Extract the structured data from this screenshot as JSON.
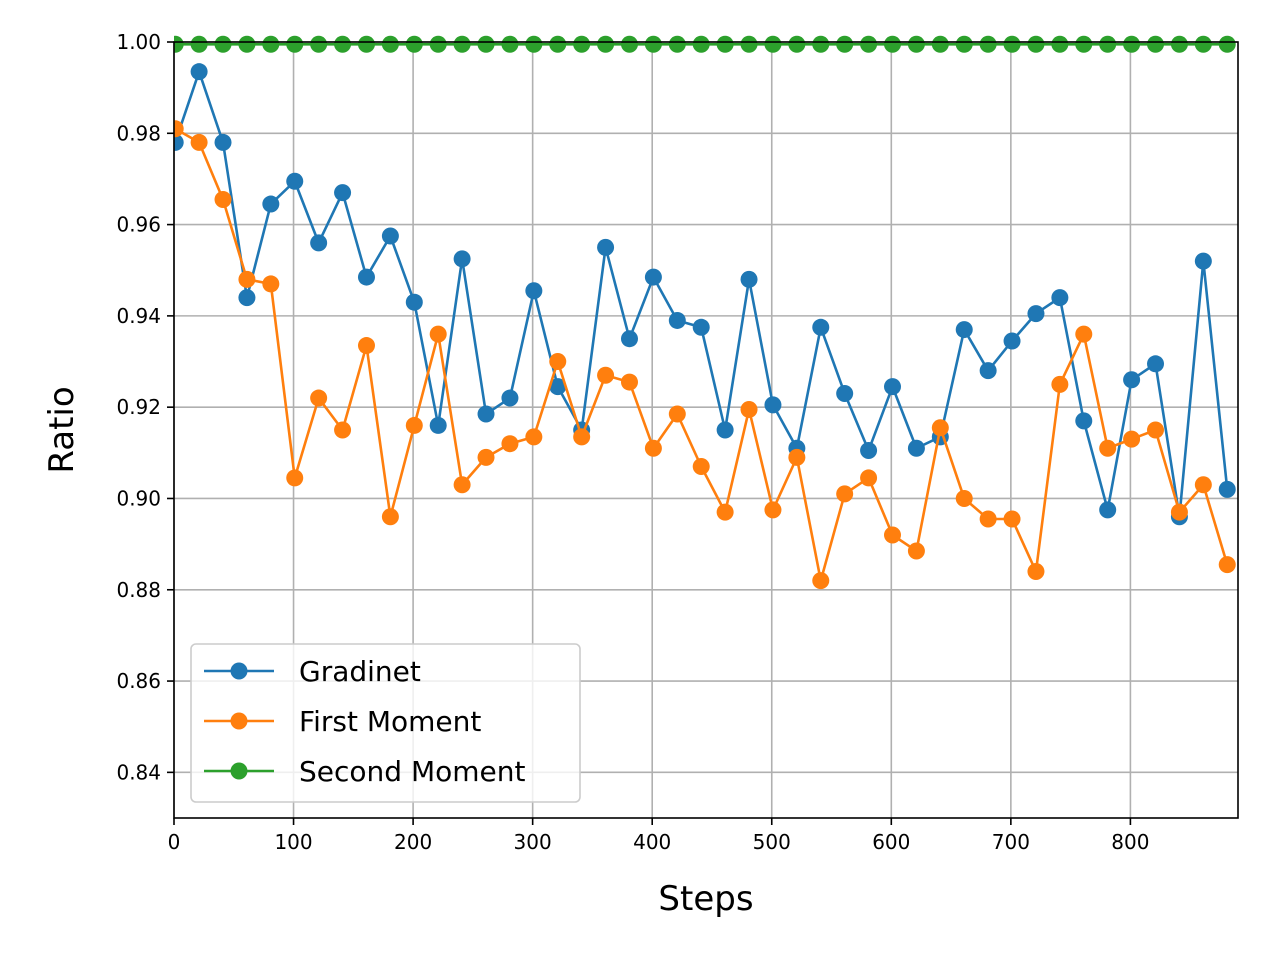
{
  "chart_data": {
    "type": "line",
    "title": "",
    "xlabel": "Steps",
    "ylabel": "Ratio",
    "xlim": [
      0,
      890
    ],
    "ylim": [
      0.83,
      1.0
    ],
    "xticks": [
      0,
      100,
      200,
      300,
      400,
      500,
      600,
      700,
      800
    ],
    "xtick_labels": [
      "0",
      "100",
      "200",
      "300",
      "400",
      "500",
      "600",
      "700",
      "800"
    ],
    "yticks": [
      0.84,
      0.86,
      0.88,
      0.9,
      0.92,
      0.94,
      0.96,
      0.98,
      1.0
    ],
    "ytick_labels": [
      "0.84",
      "0.86",
      "0.88",
      "0.90",
      "0.92",
      "0.94",
      "0.96",
      "0.98",
      "1.00"
    ],
    "grid": true,
    "legend_position": "bottom-left",
    "x": [
      1,
      21,
      41,
      61,
      81,
      101,
      121,
      141,
      161,
      181,
      201,
      221,
      241,
      261,
      281,
      301,
      321,
      341,
      361,
      381,
      401,
      421,
      441,
      461,
      481,
      501,
      521,
      541,
      561,
      581,
      601,
      621,
      641,
      661,
      681,
      701,
      721,
      741,
      761,
      781,
      801,
      821,
      841,
      861,
      881
    ],
    "series": [
      {
        "name": "Gradinet",
        "color": "#1f77b4",
        "values": [
          0.978,
          0.9935,
          0.978,
          0.944,
          0.9645,
          0.9695,
          0.956,
          0.967,
          0.9485,
          0.9575,
          0.943,
          0.916,
          0.9525,
          0.9185,
          0.922,
          0.9455,
          0.9245,
          0.915,
          0.955,
          0.935,
          0.9485,
          0.939,
          0.9375,
          0.915,
          0.948,
          0.9205,
          0.911,
          0.9375,
          0.923,
          0.9105,
          0.9245,
          0.911,
          0.9135,
          0.937,
          0.928,
          0.9345,
          0.9405,
          0.944,
          0.917,
          0.8975,
          0.926,
          0.9295,
          0.896,
          0.952,
          0.902
        ]
      },
      {
        "name": "First Moment",
        "color": "#ff7f0e",
        "values": [
          0.981,
          0.978,
          0.9655,
          0.948,
          0.947,
          0.9045,
          0.922,
          0.915,
          0.9335,
          0.896,
          0.916,
          0.936,
          0.903,
          0.909,
          0.912,
          0.9135,
          0.93,
          0.9135,
          0.927,
          0.9255,
          0.911,
          0.9185,
          0.907,
          0.897,
          0.9195,
          0.8975,
          0.909,
          0.882,
          0.901,
          0.9045,
          0.892,
          0.8885,
          0.9155,
          0.9,
          0.8955,
          0.8955,
          0.884,
          0.925,
          0.936,
          0.911,
          0.913,
          0.915,
          0.897,
          0.903,
          0.8855
        ]
      },
      {
        "name": "Second Moment",
        "color": "#2ca02c",
        "values": [
          0.9995,
          0.9995,
          0.9995,
          0.9995,
          0.9995,
          0.9995,
          0.9995,
          0.9995,
          0.9995,
          0.9995,
          0.9995,
          0.9995,
          0.9995,
          0.9995,
          0.9995,
          0.9995,
          0.9995,
          0.9995,
          0.9995,
          0.9995,
          0.9995,
          0.9995,
          0.9995,
          0.9995,
          0.9995,
          0.9995,
          0.9995,
          0.9995,
          0.9995,
          0.9995,
          0.9995,
          0.9995,
          0.9995,
          0.9995,
          0.9995,
          0.9995,
          0.9995,
          0.9995,
          0.9995,
          0.9995,
          0.9995,
          0.9995,
          0.9995,
          0.9995,
          0.9995
        ]
      }
    ]
  }
}
